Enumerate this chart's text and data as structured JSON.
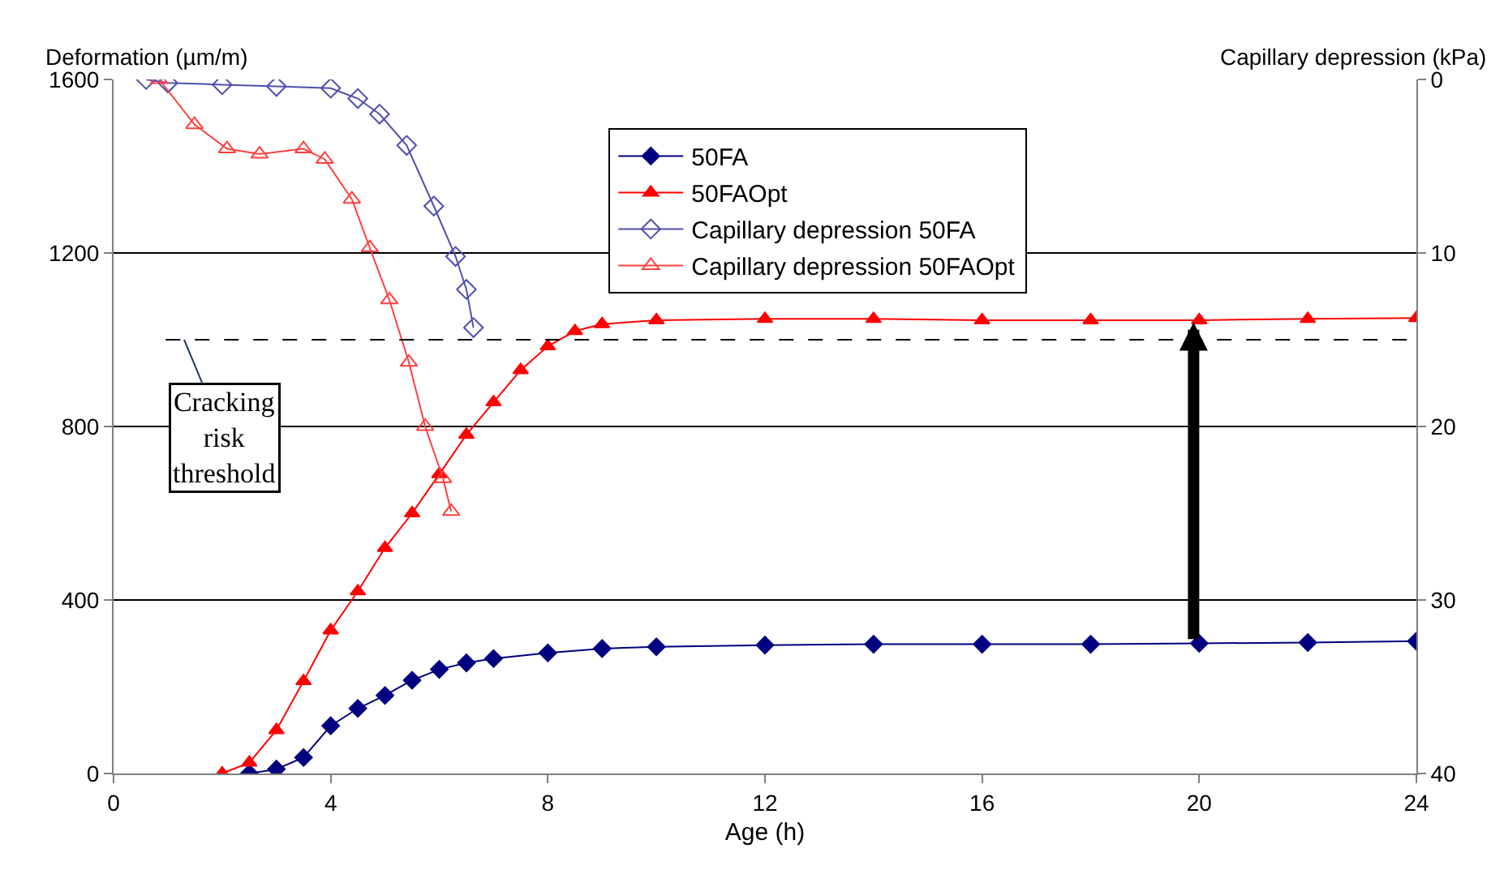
{
  "chart_data": {
    "type": "line",
    "xlabel": "Age (h)",
    "ylabel": "Deformation (µm/m)",
    "y2label": "Capillary depression (kPa)",
    "xlim": [
      0,
      24
    ],
    "xticks": [
      0,
      4,
      8,
      12,
      16,
      20,
      24
    ],
    "ylim": [
      0,
      1600
    ],
    "yticks": [
      0,
      400,
      800,
      1200,
      1600
    ],
    "y2lim": [
      40,
      0
    ],
    "y2ticks": [
      0,
      10,
      20,
      30,
      40
    ],
    "grid": "y",
    "legend": "top",
    "line_style": "solid",
    "series": [
      {
        "name": "50FA",
        "color": "#000080",
        "marker": "diamond",
        "x": [
          2.5,
          3,
          3.5,
          4,
          4.5,
          5,
          5.5,
          6,
          6.5,
          7,
          8,
          9,
          10,
          12,
          14,
          16,
          18,
          20,
          22,
          24
        ],
        "values": [
          0,
          10,
          37,
          110,
          150,
          180,
          215,
          240,
          255,
          265,
          278,
          288,
          292,
          296,
          298,
          298,
          298,
          300,
          302,
          305
        ]
      },
      {
        "name": "50FAOpt",
        "color": "#ff0000",
        "marker": "triangle",
        "x": [
          2,
          2.5,
          3,
          3.5,
          4,
          4.5,
          5,
          5.5,
          6,
          6.5,
          7,
          7.5,
          8,
          8.5,
          9,
          10,
          12,
          14,
          16,
          18,
          20,
          22,
          24
        ],
        "values": [
          0,
          25,
          100,
          213,
          330,
          420,
          520,
          600,
          690,
          781,
          856,
          930,
          985,
          1020,
          1036,
          1045,
          1048,
          1048,
          1045,
          1045,
          1045,
          1048,
          1050
        ]
      },
      {
        "name": "Capillary depression 50FA",
        "color": "#4f4fb0",
        "marker": "diamond",
        "axis": "y2",
        "x": [
          0.6,
          1,
          2,
          3,
          4,
          4.5,
          4.9,
          5.4,
          5.9,
          6.3,
          6.5,
          6.63
        ],
        "values": [
          0,
          0.2,
          0.3,
          0.4,
          0.5,
          1.1,
          2.0,
          3.8,
          7.3,
          10.2,
          12.1,
          14.3
        ]
      },
      {
        "name": "Capillary depression 50FAOpt",
        "color": "#ff4040",
        "marker": "triangle",
        "axis": "y2",
        "x": [
          0.84,
          1.49,
          2.09,
          2.69,
          3.5,
          3.89,
          4.39,
          4.72,
          5.08,
          5.44,
          5.74,
          6.07,
          6.22
        ],
        "values": [
          0,
          2.6,
          4.0,
          4.3,
          4.0,
          4.6,
          6.9,
          9.7,
          12.7,
          16.3,
          20.0,
          23.0,
          24.9
        ]
      }
    ],
    "ref_lines": [
      {
        "axis": "y",
        "value": 1000,
        "color": "#000000",
        "line_style": "dashed"
      }
    ],
    "annotations": [
      {
        "text": "Cracking\nrisk\nthreshold",
        "x": 1.3,
        "y": 1000
      }
    ]
  }
}
